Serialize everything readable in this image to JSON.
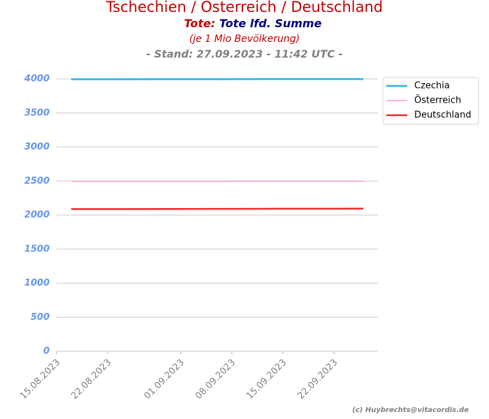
{
  "chart_data": {
    "type": "line",
    "title": "Tschechien / Österreich / Deutschland",
    "subtitle_label": "Tote:",
    "subtitle": "Tote lfd. Summe",
    "subtitle2": "(je 1 Mio Bevölkerung)",
    "subtitle3": "- Stand: 27.09.2023 - 11:42 UTC -",
    "credit": "(c) Huybrechts@vitacordis.de",
    "x": [
      "17.08.2023",
      "24.08.2023",
      "31.08.2023",
      "07.09.2023",
      "14.09.2023",
      "21.09.2023",
      "26.09.2023"
    ],
    "series": [
      {
        "name": "Czechia",
        "color": "#1eb4e6",
        "line_width": 2.5,
        "values": [
          3995,
          3995,
          3996,
          3996,
          3997,
          3997,
          3998
        ]
      },
      {
        "name": "Österreich",
        "color": "#f59ad8",
        "line_width": 1.5,
        "values": [
          2495,
          2495,
          2496,
          2496,
          2497,
          2497,
          2498
        ]
      },
      {
        "name": "Deutschland",
        "color": "#ee2a2a",
        "line_width": 2.5,
        "values": [
          2088,
          2089,
          2090,
          2091,
          2093,
          2094,
          2095
        ]
      }
    ],
    "xlim": [
      "15.08.2023",
      "28.09.2023"
    ],
    "xticks": [
      "15.08.2023",
      "22.08.2023",
      "01.09.2023",
      "08.09.2023",
      "15.09.2023",
      "22.09.2023"
    ],
    "ylim": [
      0,
      4200
    ],
    "yticks": [
      0,
      500,
      1000,
      1500,
      2000,
      2500,
      3000,
      3500,
      4000
    ],
    "grid": true,
    "legend": "upper right"
  }
}
